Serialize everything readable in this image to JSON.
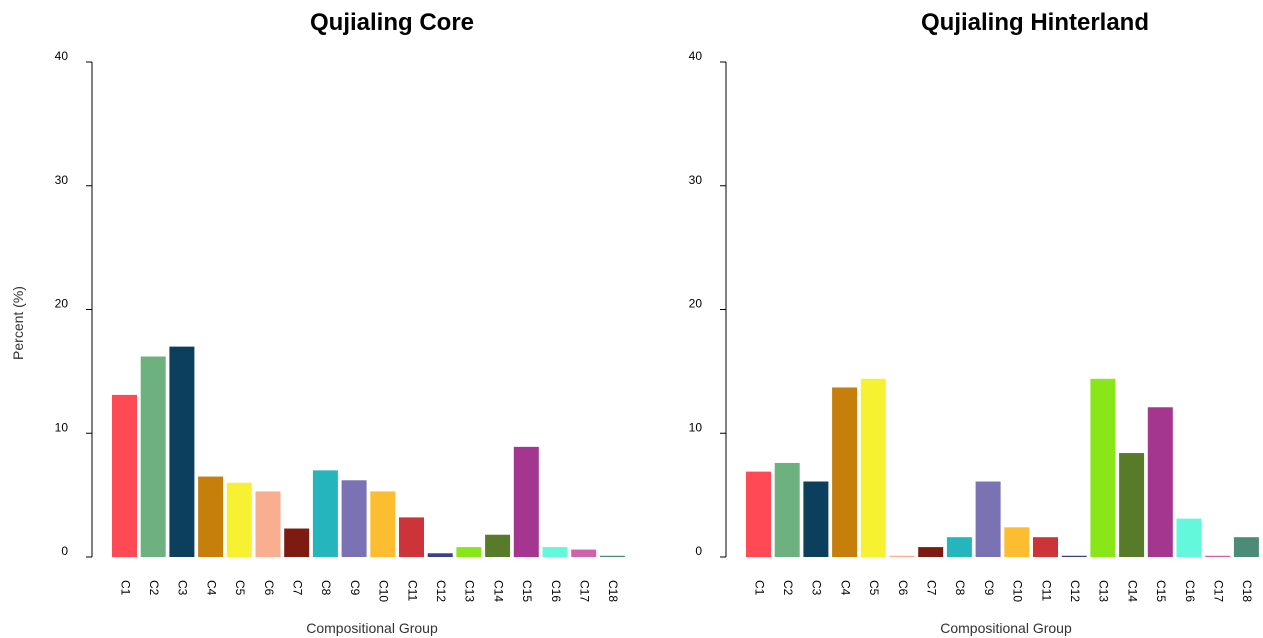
{
  "chart_data": [
    {
      "type": "bar",
      "title": "Qujialing Core",
      "xlabel": "Compositional Group",
      "ylabel": "Percent (%)",
      "ylim": [
        0,
        40
      ],
      "yticks": [
        0,
        10,
        20,
        30,
        40
      ],
      "grid": false,
      "legend": "none",
      "categories": [
        "C1",
        "C2",
        "C3",
        "C4",
        "C5",
        "C6",
        "C7",
        "C8",
        "C9",
        "C10",
        "C11",
        "C12",
        "C13",
        "C14",
        "C15",
        "C16",
        "C17",
        "C18"
      ],
      "values": [
        13.1,
        16.2,
        17.0,
        6.5,
        6.0,
        5.3,
        2.3,
        7.0,
        6.2,
        5.3,
        3.2,
        0.3,
        0.8,
        1.8,
        8.9,
        0.8,
        0.6,
        0.1
      ]
    },
    {
      "type": "bar",
      "title": "Qujialing Hinterland",
      "xlabel": "Compositional Group",
      "ylabel": "",
      "ylim": [
        0,
        40
      ],
      "yticks": [
        0,
        10,
        20,
        30,
        40
      ],
      "grid": false,
      "legend": "none",
      "categories": [
        "C1",
        "C2",
        "C3",
        "C4",
        "C5",
        "C6",
        "C7",
        "C8",
        "C9",
        "C10",
        "C11",
        "C12",
        "C13",
        "C14",
        "C15",
        "C16",
        "C17",
        "C18"
      ],
      "values": [
        6.9,
        7.6,
        6.1,
        13.7,
        14.4,
        0.1,
        0.8,
        1.6,
        6.1,
        2.4,
        1.6,
        0.1,
        14.4,
        8.4,
        12.1,
        3.1,
        0.1,
        1.6
      ]
    }
  ],
  "colors": [
    "#ff4a55",
    "#6db27e",
    "#0b3f5c",
    "#c57f0a",
    "#f6f231",
    "#f9ae8f",
    "#7d1b11",
    "#24b5bd",
    "#7b72b4",
    "#fdbd30",
    "#cd343a",
    "#3b3f86",
    "#88e619",
    "#587b29",
    "#a5368f",
    "#63f7db",
    "#cd63aa",
    "#4b8b77"
  ]
}
